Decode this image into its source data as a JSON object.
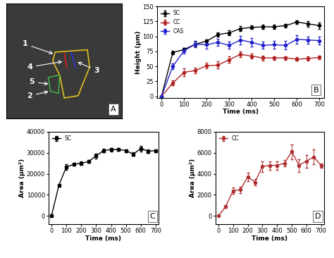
{
  "chart_data": [
    {
      "type": "image",
      "panel_label": "A",
      "annotations": [
        "1",
        "2",
        "3",
        "4",
        "5"
      ]
    },
    {
      "type": "line",
      "panel_label": "B",
      "x_label": "Time (ms)",
      "y_label": "Height (μm)",
      "x": [
        0,
        50,
        100,
        150,
        200,
        250,
        300,
        350,
        400,
        450,
        500,
        550,
        600,
        650,
        700
      ],
      "xlim": [
        -20,
        720
      ],
      "xticks": [
        0,
        100,
        200,
        300,
        400,
        500,
        600,
        700
      ],
      "ylim": [
        -3,
        150
      ],
      "yticks": [
        0,
        25,
        50,
        75,
        100,
        125,
        150
      ],
      "legend": "upper left",
      "marker": "o",
      "series": [
        {
          "name": "SC",
          "color": "#000000",
          "values": [
            0,
            73,
            78,
            87,
            92,
            103,
            106,
            113,
            115,
            116,
            116,
            118,
            124,
            121,
            118
          ],
          "errors": [
            0,
            3,
            3,
            4,
            3,
            4,
            4,
            4,
            3,
            4,
            4,
            3,
            3,
            5,
            5
          ]
        },
        {
          "name": "CC",
          "color": "#b22222",
          "values": [
            0,
            22,
            40,
            43,
            51,
            52,
            61,
            70,
            67,
            64,
            64,
            64,
            62,
            63,
            65
          ],
          "errors": [
            0,
            4,
            6,
            5,
            5,
            6,
            5,
            5,
            4,
            4,
            3,
            3,
            3,
            3,
            3
          ]
        },
        {
          "name": "CAS",
          "color": "#2222cc",
          "values": [
            0,
            50,
            76,
            87,
            86,
            90,
            85,
            94,
            90,
            85,
            86,
            85,
            95,
            94,
            93
          ],
          "errors": [
            0,
            5,
            5,
            5,
            6,
            6,
            6,
            7,
            7,
            6,
            7,
            7,
            7,
            6,
            6
          ]
        }
      ]
    },
    {
      "type": "line",
      "panel_label": "C",
      "x_label": "Time (ms)",
      "y_label": "Area (μm²)",
      "x": [
        0,
        50,
        100,
        150,
        200,
        250,
        300,
        350,
        400,
        450,
        500,
        550,
        600,
        650,
        700
      ],
      "xlim": [
        -20,
        720
      ],
      "xticks": [
        0,
        100,
        200,
        300,
        400,
        500,
        600,
        700
      ],
      "ylim": [
        -4000,
        40000
      ],
      "yticks": [
        0,
        10000,
        20000,
        30000,
        40000
      ],
      "legend": "upper left",
      "marker": "s",
      "series": [
        {
          "name": "SC",
          "color": "#000000",
          "values": [
            0,
            14500,
            23200,
            24500,
            25000,
            25800,
            28500,
            31000,
            31500,
            31500,
            31000,
            29300,
            32000,
            30700,
            31000
          ],
          "errors": [
            0,
            300,
            1200,
            800,
            900,
            700,
            1200,
            900,
            800,
            700,
            700,
            900,
            1300,
            900,
            700
          ]
        }
      ]
    },
    {
      "type": "line",
      "panel_label": "D",
      "x_label": "Time (ms)",
      "y_label": "Area (μm²)",
      "x": [
        0,
        50,
        100,
        150,
        200,
        250,
        300,
        350,
        400,
        450,
        500,
        550,
        600,
        650,
        700
      ],
      "xlim": [
        -20,
        720
      ],
      "xticks": [
        0,
        100,
        200,
        300,
        400,
        500,
        600,
        700
      ],
      "ylim": [
        -800,
        8000
      ],
      "yticks": [
        0,
        2000,
        4000,
        6000,
        8000
      ],
      "legend": "upper left",
      "marker": "o",
      "series": [
        {
          "name": "CC",
          "color": "#b03030",
          "values": [
            0,
            900,
            2400,
            2500,
            3700,
            3200,
            4700,
            4800,
            4800,
            5000,
            6100,
            4800,
            5200,
            5600,
            4800
          ],
          "errors": [
            0,
            150,
            300,
            300,
            400,
            300,
            500,
            400,
            400,
            300,
            700,
            600,
            600,
            700,
            200
          ]
        }
      ]
    }
  ]
}
